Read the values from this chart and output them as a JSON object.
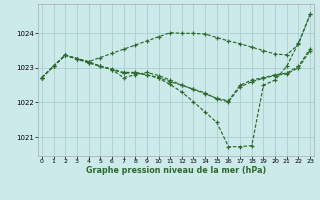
{
  "xlabel": "Graphe pression niveau de la mer (hPa)",
  "x": [
    0,
    1,
    2,
    3,
    4,
    5,
    6,
    7,
    8,
    9,
    10,
    11,
    12,
    13,
    14,
    15,
    16,
    17,
    18,
    19,
    20,
    21,
    22,
    23
  ],
  "line_straight": [
    1022.72,
    1023.05,
    1023.37,
    1023.27,
    1023.18,
    1023.3,
    1023.42,
    1023.54,
    1023.66,
    1023.78,
    1023.9,
    1024.02,
    1024.0,
    1024.0,
    1023.98,
    1023.88,
    1023.78,
    1023.7,
    1023.6,
    1023.5,
    1023.4,
    1023.38,
    1023.68,
    1024.55
  ],
  "line_mid": [
    1022.72,
    1023.05,
    1023.37,
    1023.27,
    1023.15,
    1023.05,
    1022.97,
    1022.87,
    1022.87,
    1022.8,
    1022.72,
    1022.6,
    1022.5,
    1022.38,
    1022.25,
    1022.12,
    1022.05,
    1022.5,
    1022.65,
    1022.72,
    1022.8,
    1022.85,
    1023.05,
    1023.55
  ],
  "line_small_dip": [
    1022.72,
    1023.05,
    1023.37,
    1023.27,
    1023.18,
    1023.05,
    1022.95,
    1022.72,
    1022.8,
    1022.87,
    1022.78,
    1022.65,
    1022.5,
    1022.38,
    1022.28,
    1022.1,
    1022.02,
    1022.45,
    1022.6,
    1022.7,
    1022.78,
    1022.83,
    1023.0,
    1023.5
  ],
  "line_deep": [
    1022.72,
    1023.05,
    1023.37,
    1023.25,
    1023.15,
    1023.05,
    1022.95,
    1022.85,
    1022.85,
    1022.8,
    1022.7,
    1022.52,
    1022.3,
    1022.02,
    1021.72,
    1021.42,
    1020.72,
    1020.72,
    1020.75,
    1022.5,
    1022.65,
    1023.05,
    1023.72,
    1024.55
  ],
  "line_color": "#2d6a2d",
  "bg_color": "#cceaea",
  "grid_color": "#aacece",
  "ylim": [
    1020.45,
    1024.85
  ],
  "yticks": [
    1021,
    1022,
    1023,
    1024
  ],
  "xticks": [
    0,
    1,
    2,
    3,
    4,
    5,
    6,
    7,
    8,
    9,
    10,
    11,
    12,
    13,
    14,
    15,
    16,
    17,
    18,
    19,
    20,
    21,
    22,
    23
  ],
  "xlim": [
    -0.3,
    23.3
  ]
}
